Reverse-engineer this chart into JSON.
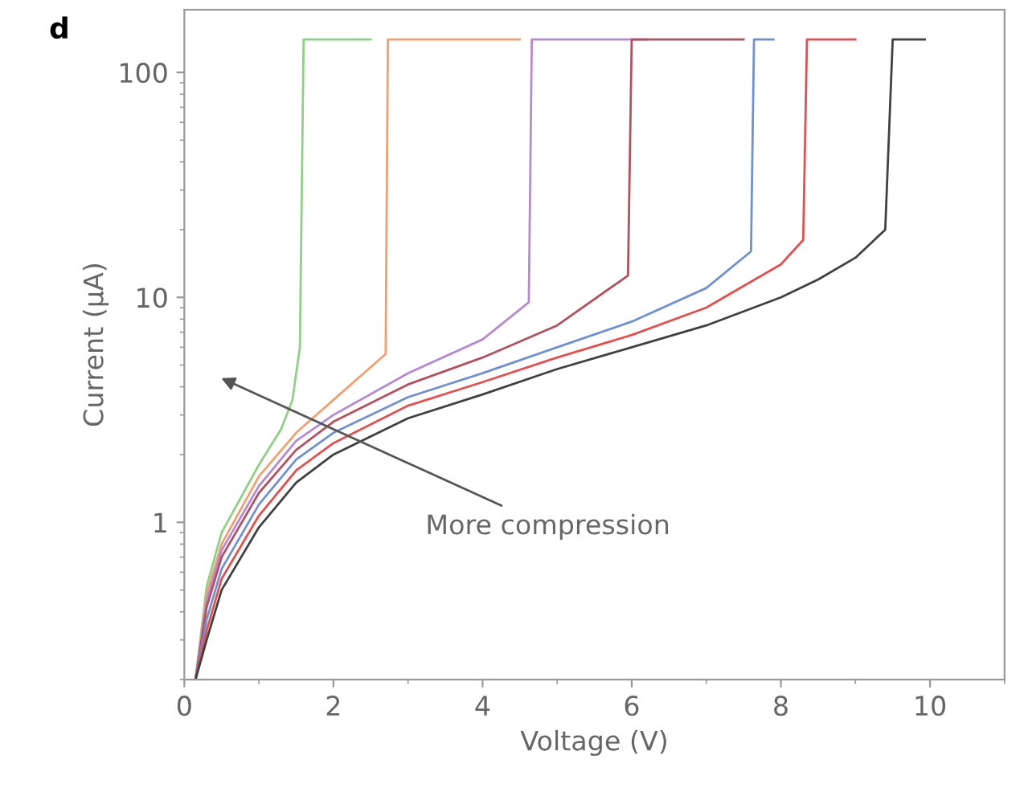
{
  "chart_data": {
    "type": "line",
    "title": "d",
    "xlabel": "Voltage (V)",
    "ylabel": "Current (µA)",
    "log": "y",
    "xlim": [
      0,
      11
    ],
    "ylim": [
      0.2,
      190
    ],
    "xticks": [
      0,
      2,
      4,
      6,
      8,
      10
    ],
    "yticks": [
      1,
      10,
      100
    ],
    "grid": false,
    "legend": false,
    "marker": "none",
    "line_style": "solid",
    "annotations": [
      "More compression"
    ],
    "series": [
      {
        "color": "#8fcf86",
        "x": [
          0.15,
          0.3,
          0.5,
          1,
          1.3,
          1.45,
          1.55,
          1.6,
          2.5
        ],
        "values": [
          0.2,
          0.52,
          0.9,
          1.8,
          2.6,
          3.5,
          6,
          140,
          140
        ]
      },
      {
        "color": "#f0a070",
        "x": [
          0.15,
          0.3,
          0.5,
          1,
          1.5,
          2,
          2.7,
          2.73,
          4.5
        ],
        "values": [
          0.2,
          0.48,
          0.8,
          1.6,
          2.5,
          3.5,
          5.6,
          140,
          140
        ]
      },
      {
        "color": "#b58ad0",
        "x": [
          0.15,
          0.3,
          0.5,
          1,
          1.5,
          2,
          3,
          4,
          4.62,
          4.66,
          6.2
        ],
        "values": [
          0.2,
          0.45,
          0.75,
          1.45,
          2.3,
          3.0,
          4.6,
          6.5,
          9.5,
          140,
          140
        ]
      },
      {
        "color": "#b05060",
        "x": [
          0.15,
          0.3,
          0.5,
          1,
          1.5,
          2,
          3,
          4,
          5,
          5.95,
          6.0,
          7.5
        ],
        "values": [
          0.2,
          0.42,
          0.7,
          1.35,
          2.1,
          2.8,
          4.1,
          5.4,
          7.5,
          12.5,
          140,
          140
        ]
      },
      {
        "color": "#7090d0",
        "x": [
          0.15,
          0.3,
          0.5,
          1,
          1.5,
          2,
          3,
          4,
          5,
          6,
          7,
          7.6,
          7.64,
          7.9
        ],
        "values": [
          0.2,
          0.37,
          0.62,
          1.2,
          1.9,
          2.5,
          3.6,
          4.6,
          6.0,
          7.8,
          11,
          16,
          140,
          140
        ]
      },
      {
        "color": "#e05050",
        "x": [
          0.15,
          0.3,
          0.5,
          1,
          1.5,
          2,
          3,
          4,
          5,
          6,
          7,
          8,
          8.3,
          8.35,
          9.0
        ],
        "values": [
          0.2,
          0.33,
          0.56,
          1.07,
          1.7,
          2.25,
          3.3,
          4.2,
          5.4,
          6.8,
          9,
          14,
          18,
          140,
          140
        ]
      },
      {
        "color": "#404040",
        "x": [
          0.15,
          0.3,
          0.5,
          1,
          1.5,
          2,
          3,
          4,
          5,
          6,
          7,
          8,
          8.5,
          9,
          9.4,
          9.5,
          9.93
        ],
        "values": [
          0.2,
          0.3,
          0.5,
          0.95,
          1.5,
          2.0,
          2.9,
          3.7,
          4.8,
          6.0,
          7.5,
          10,
          12,
          15,
          20,
          140,
          140
        ]
      }
    ]
  }
}
